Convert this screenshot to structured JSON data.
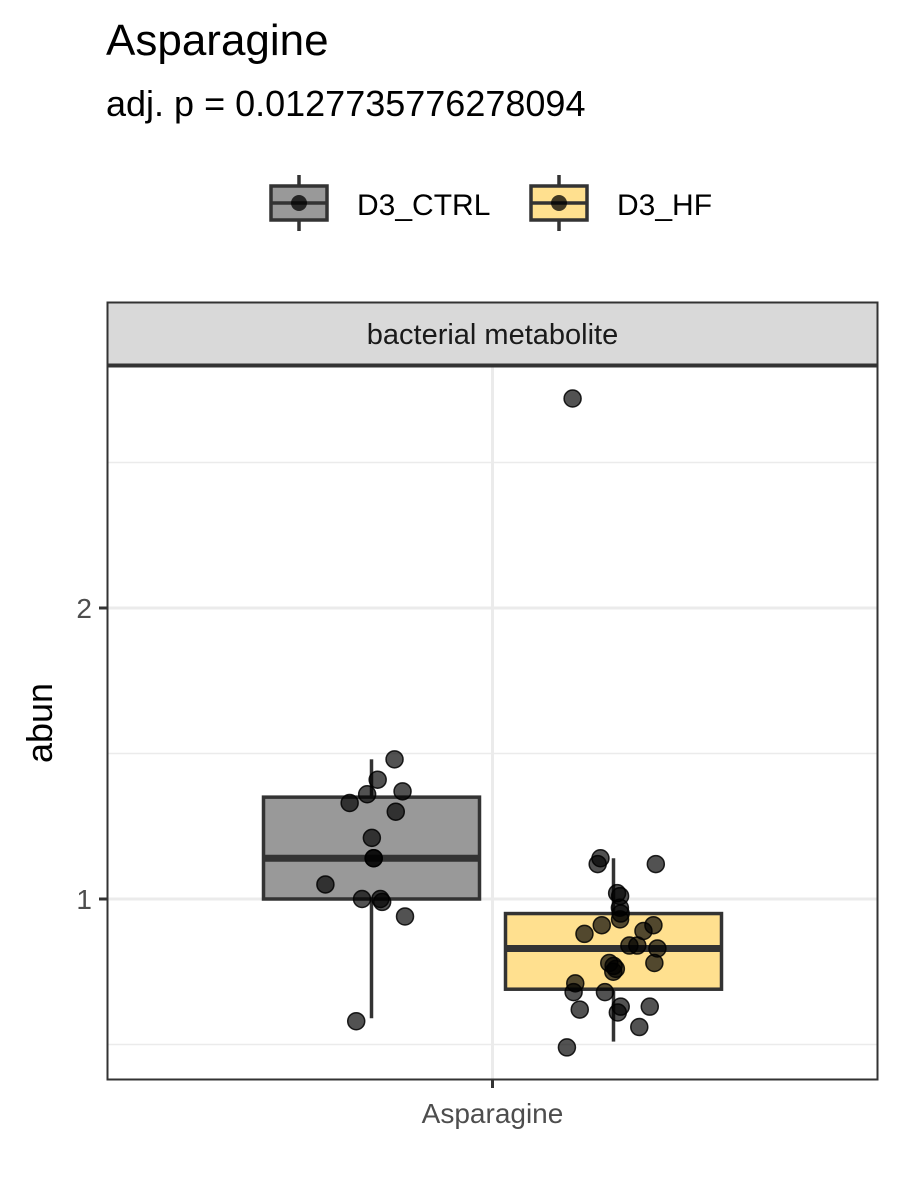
{
  "chart_data": {
    "type": "box",
    "title": "Asparagine",
    "subtitle": "adj. p = 0.0127735776278094",
    "facet_label": "bacterial metabolite",
    "xlabel": "",
    "ylabel": "abun",
    "categories": [
      "Asparagine"
    ],
    "x_tick_labels": [
      "Asparagine"
    ],
    "y_ticks": [
      1,
      2
    ],
    "y_tick_labels": [
      "1",
      "2"
    ],
    "ylim": [
      0.38,
      2.85
    ],
    "grid": true,
    "legend_position": "top",
    "series": [
      {
        "name": "D3_CTRL",
        "color": "#999999",
        "box": {
          "whisker_low": 0.59,
          "q1": 1.0,
          "median": 1.14,
          "q3": 1.35,
          "whisker_high": 1.48
        },
        "points": [
          1.48,
          1.41,
          1.36,
          1.33,
          1.37,
          1.3,
          1.21,
          1.14,
          1.14,
          1.05,
          1.0,
          0.99,
          1.0,
          0.94,
          0.58
        ]
      },
      {
        "name": "D3_HF",
        "color": "#FFE08F",
        "box": {
          "whisker_low": 0.51,
          "q1": 0.69,
          "median": 0.83,
          "q3": 0.95,
          "whisker_high": 1.14
        },
        "points": [
          2.72,
          1.14,
          1.12,
          1.12,
          1.02,
          1.01,
          0.97,
          0.95,
          0.93,
          0.91,
          0.91,
          0.89,
          0.88,
          0.84,
          0.84,
          0.83,
          0.78,
          0.78,
          0.77,
          0.76,
          0.75,
          0.71,
          0.68,
          0.68,
          0.63,
          0.63,
          0.62,
          0.61,
          0.56,
          0.49
        ]
      }
    ]
  }
}
